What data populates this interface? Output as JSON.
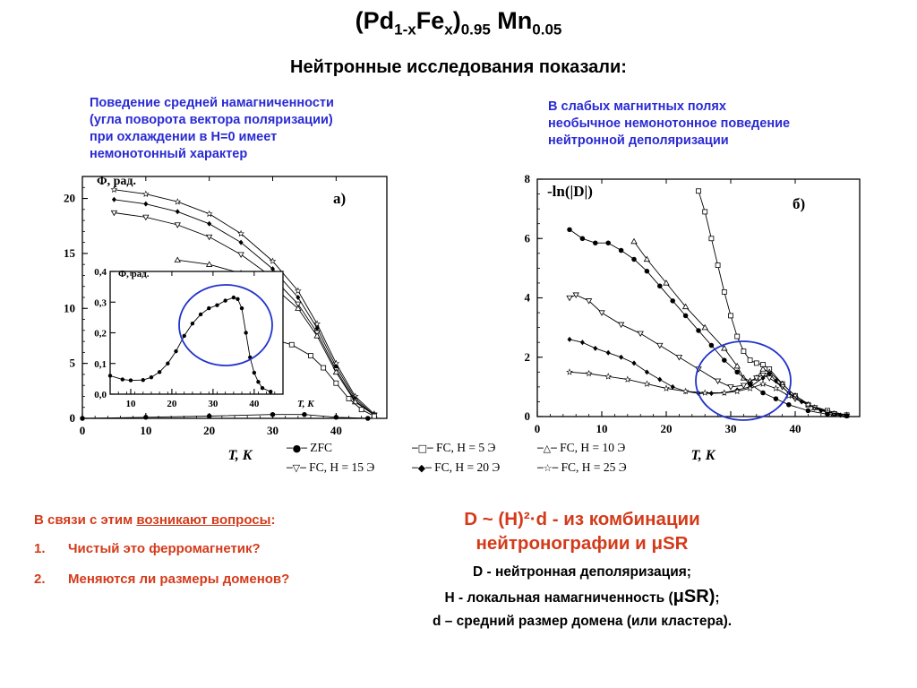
{
  "header": {
    "title_pd": "(Pd",
    "title_sub1": "1-x",
    "title_fe": "Fe",
    "title_sub2": "x",
    "title_close": ")",
    "title_sub3": "0.95",
    "title_mn": " Mn",
    "title_sub4": "0.05",
    "subtitle": "Нейтронные исследования показали:"
  },
  "notes": {
    "left": [
      "Поведение средней намагниченности",
      "(угла поворота вектора поляризации)",
      "при охлаждении в H=0  имеет",
      "немонотонный характер"
    ],
    "right": [
      "В слабых магнитных полях",
      "необычное немонотонное поведение",
      "нейтронной деполяризации"
    ]
  },
  "legend": {
    "zfc": "ZFC",
    "fc5": "FC, H = 5 Э",
    "fc10": "FC, H = 10 Э",
    "fc15": "FC, H = 15 Э",
    "fc20": "FC, H = 20 Э",
    "fc25": "FC, H = 25 Э"
  },
  "questions": {
    "intro_prefix": "В связи с этим ",
    "intro_link": "возникают вопросы",
    "intro_suffix": ":",
    "items": [
      {
        "num": "1.",
        "text": "Чистый это ферромагнетик?"
      },
      {
        "num": "2.",
        "text": "Меняются ли размеры доменов?"
      }
    ]
  },
  "formula": {
    "line1": "D ~ (H)²·d - из комбинации",
    "line2": "нейтронографии и μSR"
  },
  "definitions": {
    "d1": "D - нейтронная деполяризация;",
    "d2_prefix": "H - локальная намагниченность (",
    "d2_musr": "μSR)",
    "d2_suffix": ";",
    "d3": "d – средний размер домена (или кластера)."
  },
  "chart_data": [
    {
      "type": "line",
      "panel_label": "а)",
      "ylabel": "Φ, рад.",
      "xlabel": "T, K",
      "xlim": [
        0,
        48
      ],
      "ylim": [
        0,
        22
      ],
      "xticks": [
        0,
        10,
        20,
        30,
        40
      ],
      "yticks": [
        0,
        5,
        10,
        15,
        20
      ],
      "series": [
        {
          "name": "FC, H = 25 Э",
          "marker": "star",
          "points": [
            [
              5,
              20.8
            ],
            [
              10,
              20.4
            ],
            [
              15,
              19.7
            ],
            [
              20,
              18.6
            ],
            [
              25,
              16.8
            ],
            [
              30,
              14.3
            ],
            [
              34,
              11.6
            ],
            [
              37,
              8.6
            ],
            [
              40,
              5
            ],
            [
              43,
              2
            ],
            [
              46,
              0.4
            ]
          ]
        },
        {
          "name": "FC, H = 20 Э",
          "marker": "diamond-filled",
          "points": [
            [
              5,
              19.9
            ],
            [
              10,
              19.5
            ],
            [
              15,
              18.8
            ],
            [
              20,
              17.7
            ],
            [
              25,
              16
            ],
            [
              30,
              13.6
            ],
            [
              34,
              11
            ],
            [
              37,
              8.2
            ],
            [
              40,
              4.7
            ],
            [
              43,
              1.8
            ],
            [
              46,
              0.3
            ]
          ]
        },
        {
          "name": "FC, H = 15 Э",
          "marker": "triangle-down",
          "points": [
            [
              5,
              18.7
            ],
            [
              10,
              18.3
            ],
            [
              15,
              17.6
            ],
            [
              20,
              16.5
            ],
            [
              25,
              14.9
            ],
            [
              30,
              12.8
            ],
            [
              34,
              10.4
            ],
            [
              37,
              7.8
            ],
            [
              40,
              4.4
            ],
            [
              43,
              1.6
            ],
            [
              46,
              0.3
            ]
          ]
        },
        {
          "name": "FC, H = 10 Э",
          "marker": "triangle-up",
          "points": [
            [
              15,
              14.4
            ],
            [
              20,
              14
            ],
            [
              25,
              13.2
            ],
            [
              30,
              12
            ],
            [
              34,
              10
            ],
            [
              37,
              7.5
            ],
            [
              40,
              4.2
            ],
            [
              43,
              1.5
            ],
            [
              46,
              0.3
            ]
          ]
        },
        {
          "name": "FC, H = 5 Э",
          "marker": "square",
          "points": [
            [
              27,
              7.4
            ],
            [
              30,
              7.2
            ],
            [
              33,
              6.7
            ],
            [
              36,
              5.7
            ],
            [
              38,
              4.6
            ],
            [
              40,
              3.2
            ],
            [
              42,
              1.8
            ],
            [
              44,
              0.8
            ],
            [
              46,
              0.2
            ]
          ]
        },
        {
          "name": "ZFC",
          "marker": "dot",
          "points": [
            [
              0,
              0
            ],
            [
              10,
              0.1
            ],
            [
              20,
              0.2
            ],
            [
              30,
              0.35
            ],
            [
              35,
              0.35
            ],
            [
              40,
              0.1
            ],
            [
              45,
              0
            ]
          ]
        }
      ],
      "inset": {
        "ylabel": "Φ, рад.",
        "xlabel": "T, K",
        "xlim": [
          5,
          47
        ],
        "ylim": [
          0,
          0.4
        ],
        "xticks": [
          10,
          20,
          30,
          40
        ],
        "yticks": [
          "0,0",
          "0,1",
          "0,2",
          "0,3",
          "0,4"
        ],
        "ytick_values": [
          0,
          0.1,
          0.2,
          0.3,
          0.4
        ],
        "series": [
          {
            "name": "ZFC",
            "marker": "dot",
            "points": [
              [
                5,
                0.06
              ],
              [
                8,
                0.048
              ],
              [
                10,
                0.045
              ],
              [
                13,
                0.046
              ],
              [
                15,
                0.055
              ],
              [
                17,
                0.072
              ],
              [
                19,
                0.1
              ],
              [
                21,
                0.14
              ],
              [
                23,
                0.19
              ],
              [
                25,
                0.23
              ],
              [
                27,
                0.26
              ],
              [
                29,
                0.28
              ],
              [
                31,
                0.29
              ],
              [
                33,
                0.305
              ],
              [
                35,
                0.315
              ],
              [
                36,
                0.31
              ],
              [
                37,
                0.28
              ],
              [
                38,
                0.2
              ],
              [
                39,
                0.12
              ],
              [
                40,
                0.07
              ],
              [
                41,
                0.04
              ],
              [
                42,
                0.02
              ],
              [
                44,
                0.008
              ]
            ]
          }
        ]
      }
    },
    {
      "type": "line",
      "panel_label": "б)",
      "ylabel": "-ln(|D|)",
      "xlabel": "T, K",
      "xlim": [
        0,
        50
      ],
      "ylim": [
        0,
        8
      ],
      "xticks": [
        0,
        10,
        20,
        30,
        40
      ],
      "yticks": [
        0,
        2,
        4,
        6,
        8
      ],
      "series": [
        {
          "name": "FC, H = 5 Э",
          "marker": "square",
          "points": [
            [
              25,
              7.6
            ],
            [
              26,
              6.9
            ],
            [
              27,
              6
            ],
            [
              28,
              5.1
            ],
            [
              29,
              4.2
            ],
            [
              30,
              3.4
            ],
            [
              31,
              2.7
            ],
            [
              32,
              2.2
            ],
            [
              33,
              1.9
            ],
            [
              34,
              1.8
            ],
            [
              35,
              1.75
            ],
            [
              36,
              1.6
            ],
            [
              38,
              1.1
            ],
            [
              40,
              0.7
            ],
            [
              42,
              0.4
            ],
            [
              45,
              0.2
            ],
            [
              48,
              0.05
            ]
          ]
        },
        {
          "name": "FC, H = 10 Э",
          "marker": "triangle-up",
          "points": [
            [
              15,
              5.9
            ],
            [
              17,
              5.3
            ],
            [
              20,
              4.5
            ],
            [
              23,
              3.7
            ],
            [
              26,
              3
            ],
            [
              29,
              2.3
            ],
            [
              31,
              1.7
            ],
            [
              32,
              1.3
            ],
            [
              33,
              1.2
            ],
            [
              34,
              1.3
            ],
            [
              35,
              1.6
            ],
            [
              36,
              1.5
            ],
            [
              38,
              1.1
            ],
            [
              40,
              0.7
            ],
            [
              43,
              0.3
            ],
            [
              46,
              0.1
            ]
          ]
        },
        {
          "name": "FC, H = 15 Э",
          "marker": "triangle-down",
          "points": [
            [
              5,
              4
            ],
            [
              6,
              4.1
            ],
            [
              8,
              3.9
            ],
            [
              10,
              3.5
            ],
            [
              13,
              3.1
            ],
            [
              16,
              2.8
            ],
            [
              19,
              2.4
            ],
            [
              22,
              2
            ],
            [
              25,
              1.6
            ],
            [
              28,
              1.2
            ],
            [
              30,
              1
            ],
            [
              32,
              1.05
            ],
            [
              34,
              1.3
            ],
            [
              35,
              1.4
            ],
            [
              36,
              1.3
            ],
            [
              38,
              1
            ],
            [
              40,
              0.6
            ],
            [
              43,
              0.3
            ],
            [
              46,
              0.1
            ]
          ]
        },
        {
          "name": "FC, H = 20 Э",
          "marker": "diamond-filled",
          "points": [
            [
              5,
              2.6
            ],
            [
              7,
              2.5
            ],
            [
              9,
              2.3
            ],
            [
              11,
              2.15
            ],
            [
              13,
              2
            ],
            [
              15,
              1.8
            ],
            [
              17,
              1.5
            ],
            [
              19,
              1.25
            ],
            [
              21,
              1
            ],
            [
              23,
              0.85
            ],
            [
              25,
              0.78
            ],
            [
              27,
              0.78
            ],
            [
              29,
              0.8
            ],
            [
              31,
              0.9
            ],
            [
              33,
              1
            ],
            [
              35,
              1.3
            ],
            [
              36,
              1.45
            ],
            [
              37,
              1.2
            ],
            [
              39,
              0.8
            ],
            [
              41,
              0.5
            ],
            [
              44,
              0.2
            ],
            [
              47,
              0.05
            ]
          ]
        },
        {
          "name": "FC, H = 25 Э",
          "marker": "star",
          "points": [
            [
              5,
              1.5
            ],
            [
              8,
              1.45
            ],
            [
              11,
              1.35
            ],
            [
              14,
              1.25
            ],
            [
              17,
              1.1
            ],
            [
              20,
              0.95
            ],
            [
              23,
              0.85
            ],
            [
              26,
              0.8
            ],
            [
              29,
              0.8
            ],
            [
              31,
              0.85
            ],
            [
              33,
              0.95
            ],
            [
              35,
              1.1
            ],
            [
              37,
              0.95
            ],
            [
              39,
              0.7
            ],
            [
              42,
              0.4
            ],
            [
              45,
              0.15
            ],
            [
              48,
              0.05
            ]
          ]
        },
        {
          "name": "ZFC",
          "marker": "dot",
          "points": [
            [
              5,
              6.3
            ],
            [
              7,
              6
            ],
            [
              9,
              5.85
            ],
            [
              11,
              5.85
            ],
            [
              13,
              5.6
            ],
            [
              15,
              5.3
            ],
            [
              17,
              4.9
            ],
            [
              19,
              4.4
            ],
            [
              21,
              3.9
            ],
            [
              23,
              3.4
            ],
            [
              25,
              2.9
            ],
            [
              27,
              2.4
            ],
            [
              29,
              1.9
            ],
            [
              31,
              1.5
            ],
            [
              33,
              1.1
            ],
            [
              35,
              0.8
            ],
            [
              37,
              0.6
            ],
            [
              39,
              0.4
            ],
            [
              42,
              0.2
            ],
            [
              45,
              0.08
            ],
            [
              48,
              0.02
            ]
          ]
        }
      ]
    }
  ]
}
